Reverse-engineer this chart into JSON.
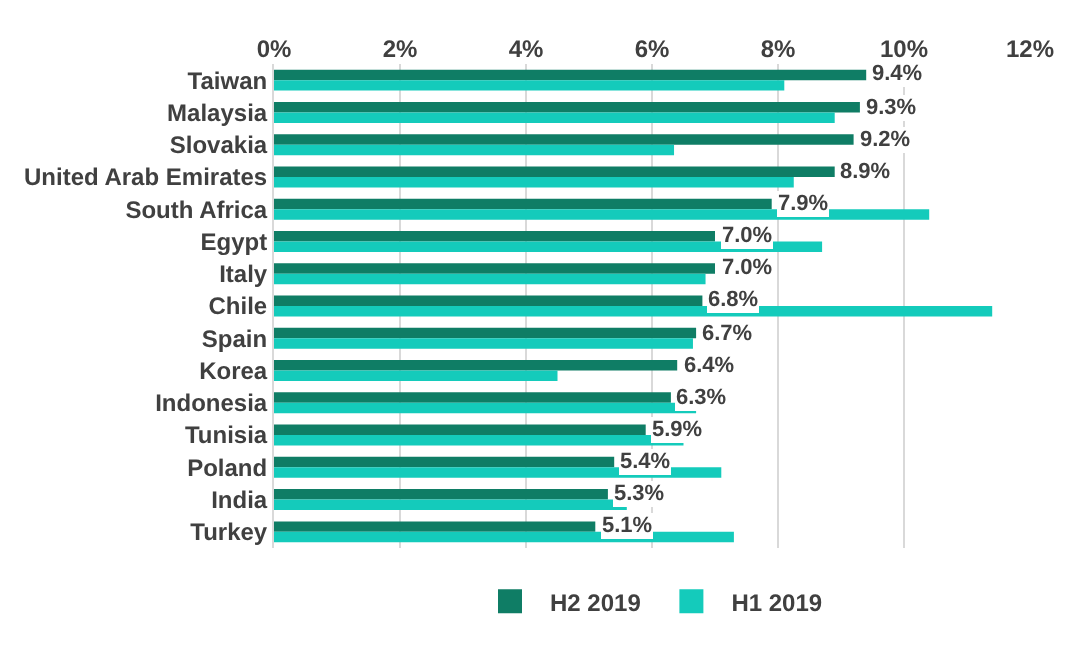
{
  "chart_data": {
    "type": "bar",
    "orientation": "horizontal",
    "categories": [
      "Taiwan",
      "Malaysia",
      "Slovakia",
      "United Arab Emirates",
      "South Africa",
      "Egypt",
      "Italy",
      "Chile",
      "Spain",
      "Korea",
      "Indonesia",
      "Tunisia",
      "Poland",
      "India",
      "Turkey"
    ],
    "series": [
      {
        "name": "H2 2019",
        "color": "#0f7d65",
        "values": [
          9.4,
          9.3,
          9.2,
          8.9,
          7.9,
          7.0,
          7.0,
          6.8,
          6.7,
          6.4,
          6.3,
          5.9,
          5.4,
          5.3,
          5.1
        ],
        "value_labels": [
          "9.4%",
          "9.3%",
          "9.2%",
          "8.9%",
          "7.9%",
          "7.0%",
          "7.0%",
          "6.8%",
          "6.7%",
          "6.4%",
          "6.3%",
          "5.9%",
          "5.4%",
          "5.3%",
          "5.1%"
        ]
      },
      {
        "name": "H1 2019",
        "color": "#14cbbb",
        "values": [
          8.1,
          8.9,
          6.35,
          8.25,
          10.4,
          8.7,
          6.85,
          11.4,
          6.65,
          4.5,
          6.7,
          6.5,
          7.1,
          5.6,
          7.3
        ]
      }
    ],
    "xlim": [
      0,
      12
    ],
    "xticks": [
      {
        "value": 0,
        "label": "0%"
      },
      {
        "value": 2,
        "label": "2%"
      },
      {
        "value": 4,
        "label": "4%"
      },
      {
        "value": 6,
        "label": "6%"
      },
      {
        "value": 8,
        "label": "8%"
      },
      {
        "value": 10,
        "label": "10%"
      },
      {
        "value": 12,
        "label": "12%"
      }
    ],
    "grid": "x",
    "legend": "bottom"
  }
}
